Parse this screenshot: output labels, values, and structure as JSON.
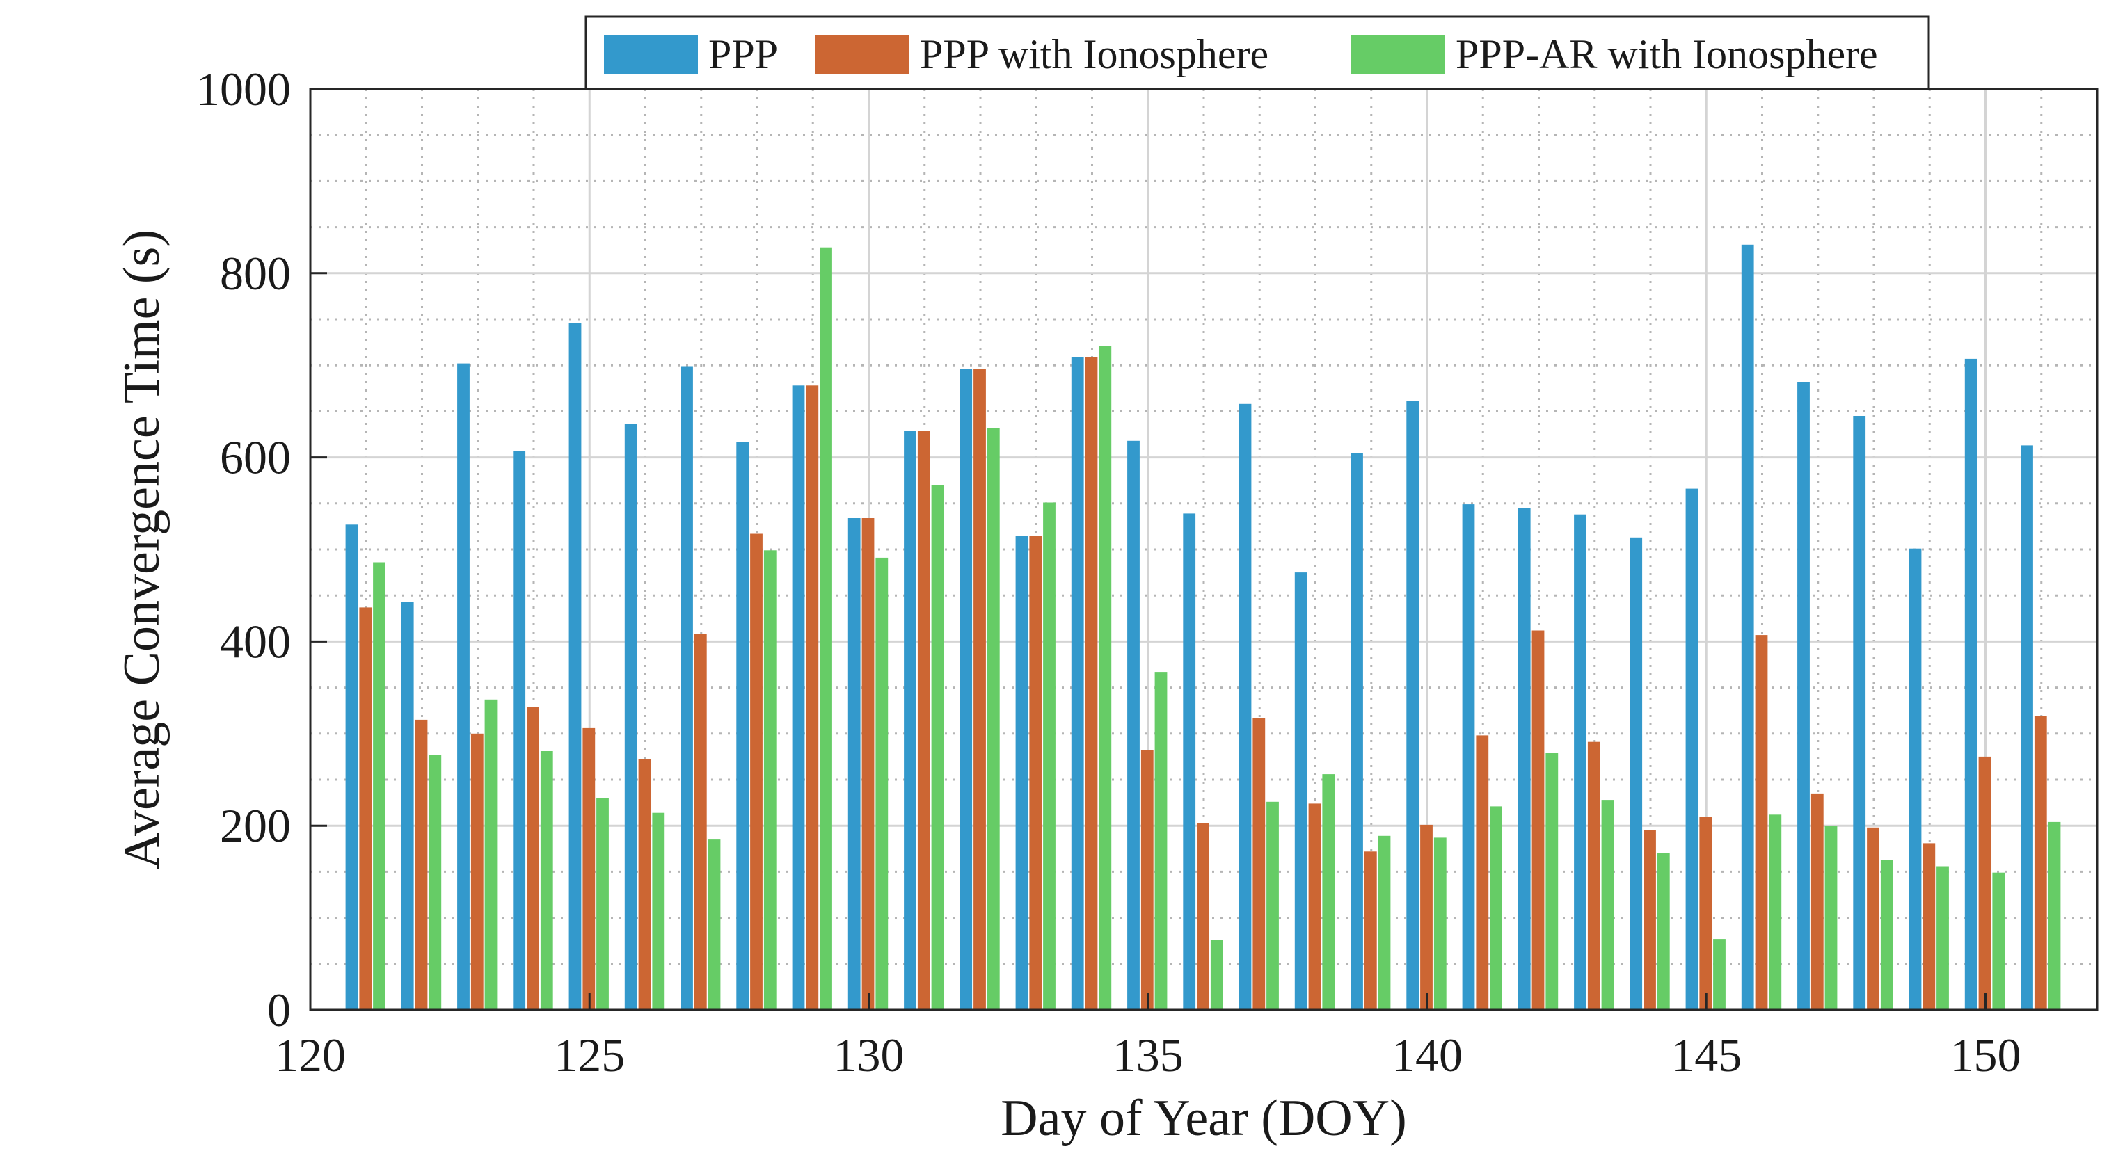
{
  "chart_data": {
    "type": "bar",
    "xlabel": "Day of Year (DOY)",
    "ylabel": "Average Convergence Time (s)",
    "xlim": [
      120,
      152
    ],
    "ylim": [
      0,
      1000
    ],
    "xticks": [
      120,
      125,
      130,
      135,
      140,
      145,
      150
    ],
    "yticks": [
      0,
      200,
      400,
      600,
      800,
      1000
    ],
    "grid": true,
    "legend_position": "top",
    "categories": [
      121,
      122,
      123,
      124,
      125,
      126,
      127,
      128,
      129,
      130,
      131,
      132,
      133,
      134,
      135,
      136,
      137,
      138,
      139,
      140,
      141,
      142,
      143,
      144,
      145,
      146,
      147,
      148,
      149,
      150,
      151
    ],
    "series": [
      {
        "name": "PPP",
        "color": "#3399cc",
        "values": [
          527,
          443,
          702,
          607,
          746,
          636,
          699,
          617,
          678,
          534,
          629,
          696,
          515,
          709,
          618,
          539,
          658,
          475,
          605,
          661,
          549,
          545,
          538,
          513,
          566,
          831,
          682,
          645,
          501,
          707,
          613
        ]
      },
      {
        "name": "PPP with Ionosphere",
        "color": "#cc6633",
        "values": [
          437,
          315,
          300,
          329,
          306,
          272,
          408,
          517,
          678,
          534,
          629,
          696,
          515,
          709,
          282,
          203,
          317,
          224,
          172,
          201,
          298,
          412,
          291,
          195,
          210,
          407,
          235,
          198,
          181,
          275,
          319
        ]
      },
      {
        "name": "PPP-AR with Ionosphere",
        "color": "#66cc66",
        "values": [
          486,
          277,
          337,
          281,
          230,
          214,
          185,
          499,
          828,
          491,
          570,
          632,
          551,
          721,
          367,
          76,
          226,
          256,
          189,
          187,
          221,
          279,
          228,
          170,
          77,
          212,
          200,
          163,
          156,
          149,
          204
        ]
      }
    ]
  }
}
